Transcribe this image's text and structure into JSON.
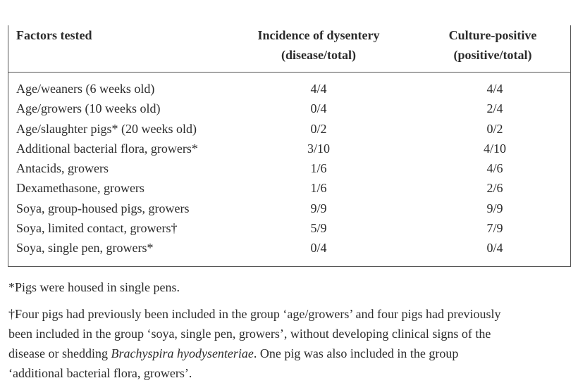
{
  "table": {
    "headers": {
      "factors": "Factors tested",
      "incidence_line1": "Incidence of dysentery",
      "incidence_line2": "(disease/total)",
      "culture_line1": "Culture-positive",
      "culture_line2": "(positive/total)"
    },
    "rows": [
      {
        "factor": "Age/weaners (6 weeks old)",
        "incidence": "4/4",
        "culture": "4/4"
      },
      {
        "factor": "Age/growers (10 weeks old)",
        "incidence": "0/4",
        "culture": "2/4"
      },
      {
        "factor": "Age/slaughter pigs* (20 weeks old)",
        "incidence": "0/2",
        "culture": "0/2"
      },
      {
        "factor": "Additional bacterial flora, growers*",
        "incidence": "3/10",
        "culture": "4/10"
      },
      {
        "factor": "Antacids, growers",
        "incidence": "1/6",
        "culture": "4/6"
      },
      {
        "factor": "Dexamethasone, growers",
        "incidence": "1/6",
        "culture": "2/6"
      },
      {
        "factor": "Soya, group-housed pigs, growers",
        "incidence": "9/9",
        "culture": "9/9"
      },
      {
        "factor": "Soya, limited contact, growers†",
        "incidence": "5/9",
        "culture": "7/9"
      },
      {
        "factor": "Soya, single pen, growers*",
        "incidence": "0/4",
        "culture": "0/4"
      }
    ]
  },
  "footnotes": {
    "asterisk": "*Pigs were housed in single pens.",
    "dagger_line1": "†Four pigs had previously been included in the group ‘age/growers’ and four pigs had previously",
    "dagger_line2": "been included in the group ‘soya, single pen, growers’, without developing clinical signs of the",
    "dagger_line3_pre": "disease or shedding ",
    "dagger_line3_italic": "Brachyspira hyodysenteriae",
    "dagger_line3_post": ". One pig was also included in the group",
    "dagger_line4": "‘additional bacterial flora, growers’."
  }
}
